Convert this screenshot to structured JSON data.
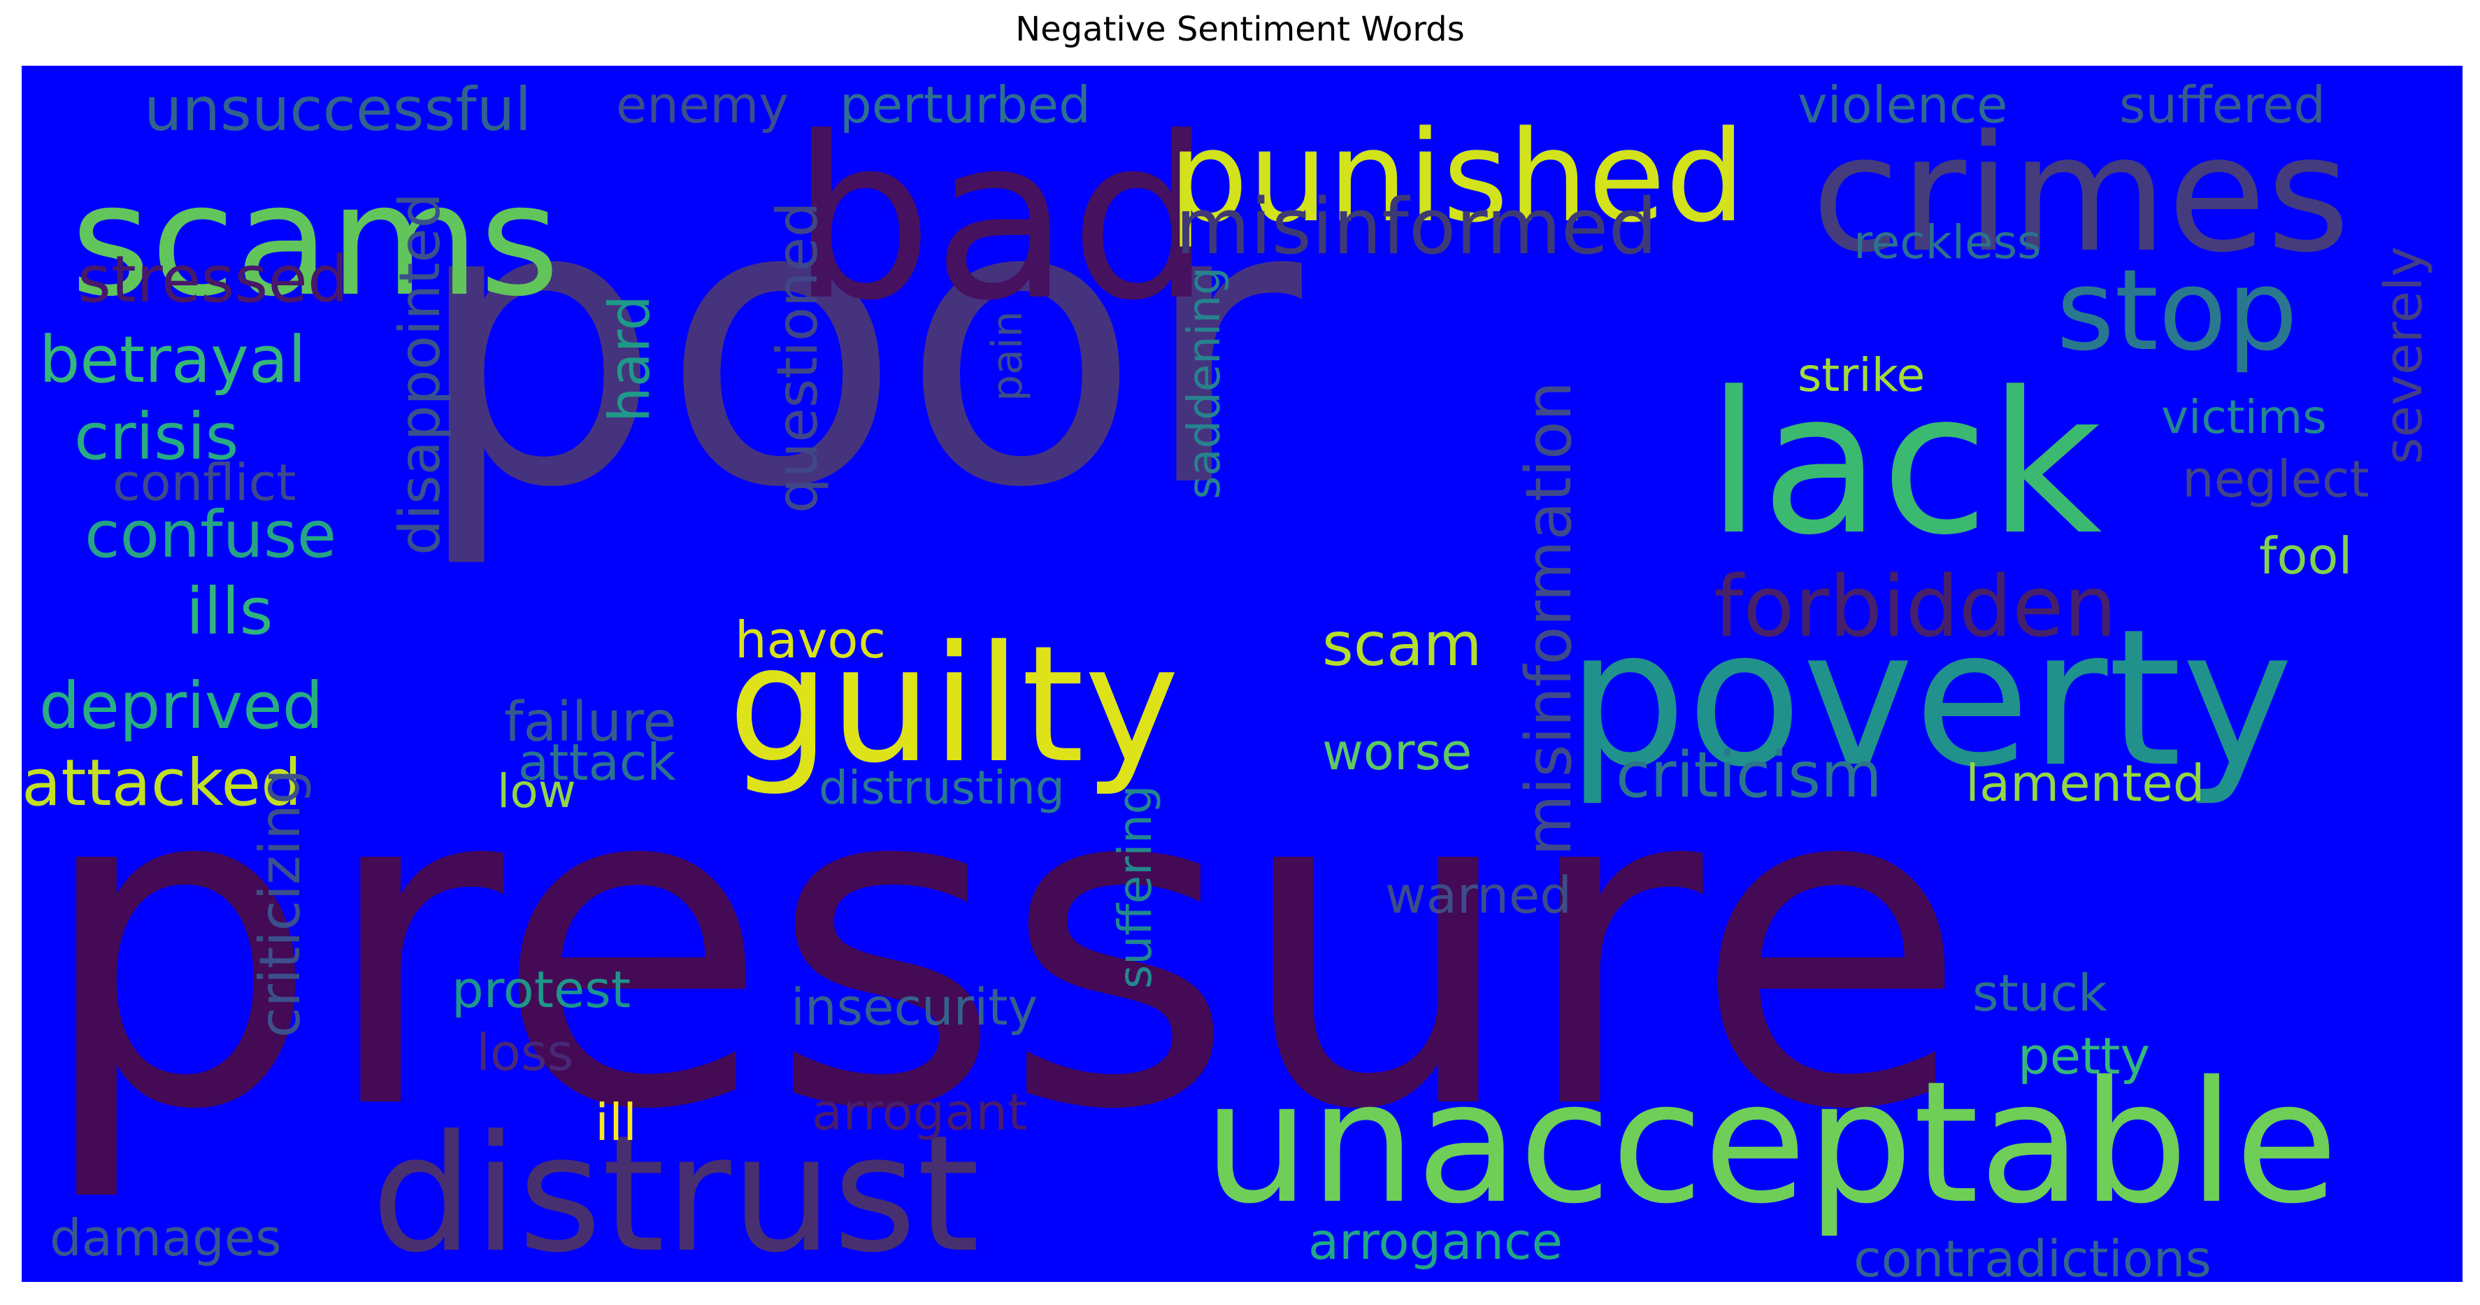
{
  "title": "Negative Sentiment Words",
  "background_color": "#0000ff",
  "words": [
    {
      "text": "pressure",
      "color": "#440a55"
    },
    {
      "text": "poor",
      "color": "#46337e"
    },
    {
      "text": "bad",
      "color": "#46115f"
    },
    {
      "text": "scams",
      "color": "#61c55c"
    },
    {
      "text": "crimes",
      "color": "#443c7d"
    },
    {
      "text": "punished",
      "color": "#d2e21b"
    },
    {
      "text": "guilty",
      "color": "#dde318"
    },
    {
      "text": "lack",
      "color": "#3bb970"
    },
    {
      "text": "poverty",
      "color": "#21918c"
    },
    {
      "text": "unacceptable",
      "color": "#6ece58"
    },
    {
      "text": "distrust",
      "color": "#482f70"
    },
    {
      "text": "stop",
      "color": "#2a788e"
    },
    {
      "text": "misinformed",
      "color": "#3e3a76"
    },
    {
      "text": "forbidden",
      "color": "#46206a"
    },
    {
      "text": "misinformation",
      "color": "#3f4a8a"
    },
    {
      "text": "unsuccessful",
      "color": "#31638d"
    },
    {
      "text": "enemy",
      "color": "#3c4f8a"
    },
    {
      "text": "perturbed",
      "color": "#2d708e"
    },
    {
      "text": "violence",
      "color": "#2f6b8e"
    },
    {
      "text": "suffered",
      "color": "#365c8d"
    },
    {
      "text": "reckless",
      "color": "#2c728e"
    },
    {
      "text": "stressed",
      "color": "#48186a"
    },
    {
      "text": "betrayal",
      "color": "#35b779"
    },
    {
      "text": "crisis",
      "color": "#27ad81"
    },
    {
      "text": "conflict",
      "color": "#3e4989"
    },
    {
      "text": "confuse",
      "color": "#25a584"
    },
    {
      "text": "ills",
      "color": "#2fb47c"
    },
    {
      "text": "deprived",
      "color": "#28ae80"
    },
    {
      "text": "attacked",
      "color": "#c2df23"
    },
    {
      "text": "disappointed",
      "color": "#3b518b"
    },
    {
      "text": "hard",
      "color": "#1f9a8a"
    },
    {
      "text": "questioned",
      "color": "#3f4788"
    },
    {
      "text": "pain",
      "color": "#3d4e8a"
    },
    {
      "text": "saddening",
      "color": "#26828e"
    },
    {
      "text": "strike",
      "color": "#a5db36"
    },
    {
      "text": "victims",
      "color": "#23898e"
    },
    {
      "text": "severely",
      "color": "#433e85"
    },
    {
      "text": "neglect",
      "color": "#414487"
    },
    {
      "text": "fool",
      "color": "#81d34d"
    },
    {
      "text": "havoc",
      "color": "#d8e219"
    },
    {
      "text": "scam",
      "color": "#b5de2b"
    },
    {
      "text": "failure",
      "color": "#375a8c"
    },
    {
      "text": "attack",
      "color": "#2c738e"
    },
    {
      "text": "low",
      "color": "#90d743"
    },
    {
      "text": "distrusting",
      "color": "#29798e"
    },
    {
      "text": "worse",
      "color": "#5ec962"
    },
    {
      "text": "criticism",
      "color": "#2b758e"
    },
    {
      "text": "lamented",
      "color": "#93d741"
    },
    {
      "text": "criticizing",
      "color": "#3c508b"
    },
    {
      "text": "suffering",
      "color": "#23888e"
    },
    {
      "text": "warned",
      "color": "#3d4d8a"
    },
    {
      "text": "protest",
      "color": "#1f968b"
    },
    {
      "text": "insecurity",
      "color": "#34618d"
    },
    {
      "text": "stuck",
      "color": "#2c718e"
    },
    {
      "text": "loss",
      "color": "#482878"
    },
    {
      "text": "petty",
      "color": "#35b779"
    },
    {
      "text": "ill",
      "color": "#f8e621"
    },
    {
      "text": "arrogant",
      "color": "#481c6e"
    },
    {
      "text": "damages",
      "color": "#38598c"
    },
    {
      "text": "arrogance",
      "color": "#22a785"
    },
    {
      "text": "contradictions",
      "color": "#32648e"
    }
  ]
}
